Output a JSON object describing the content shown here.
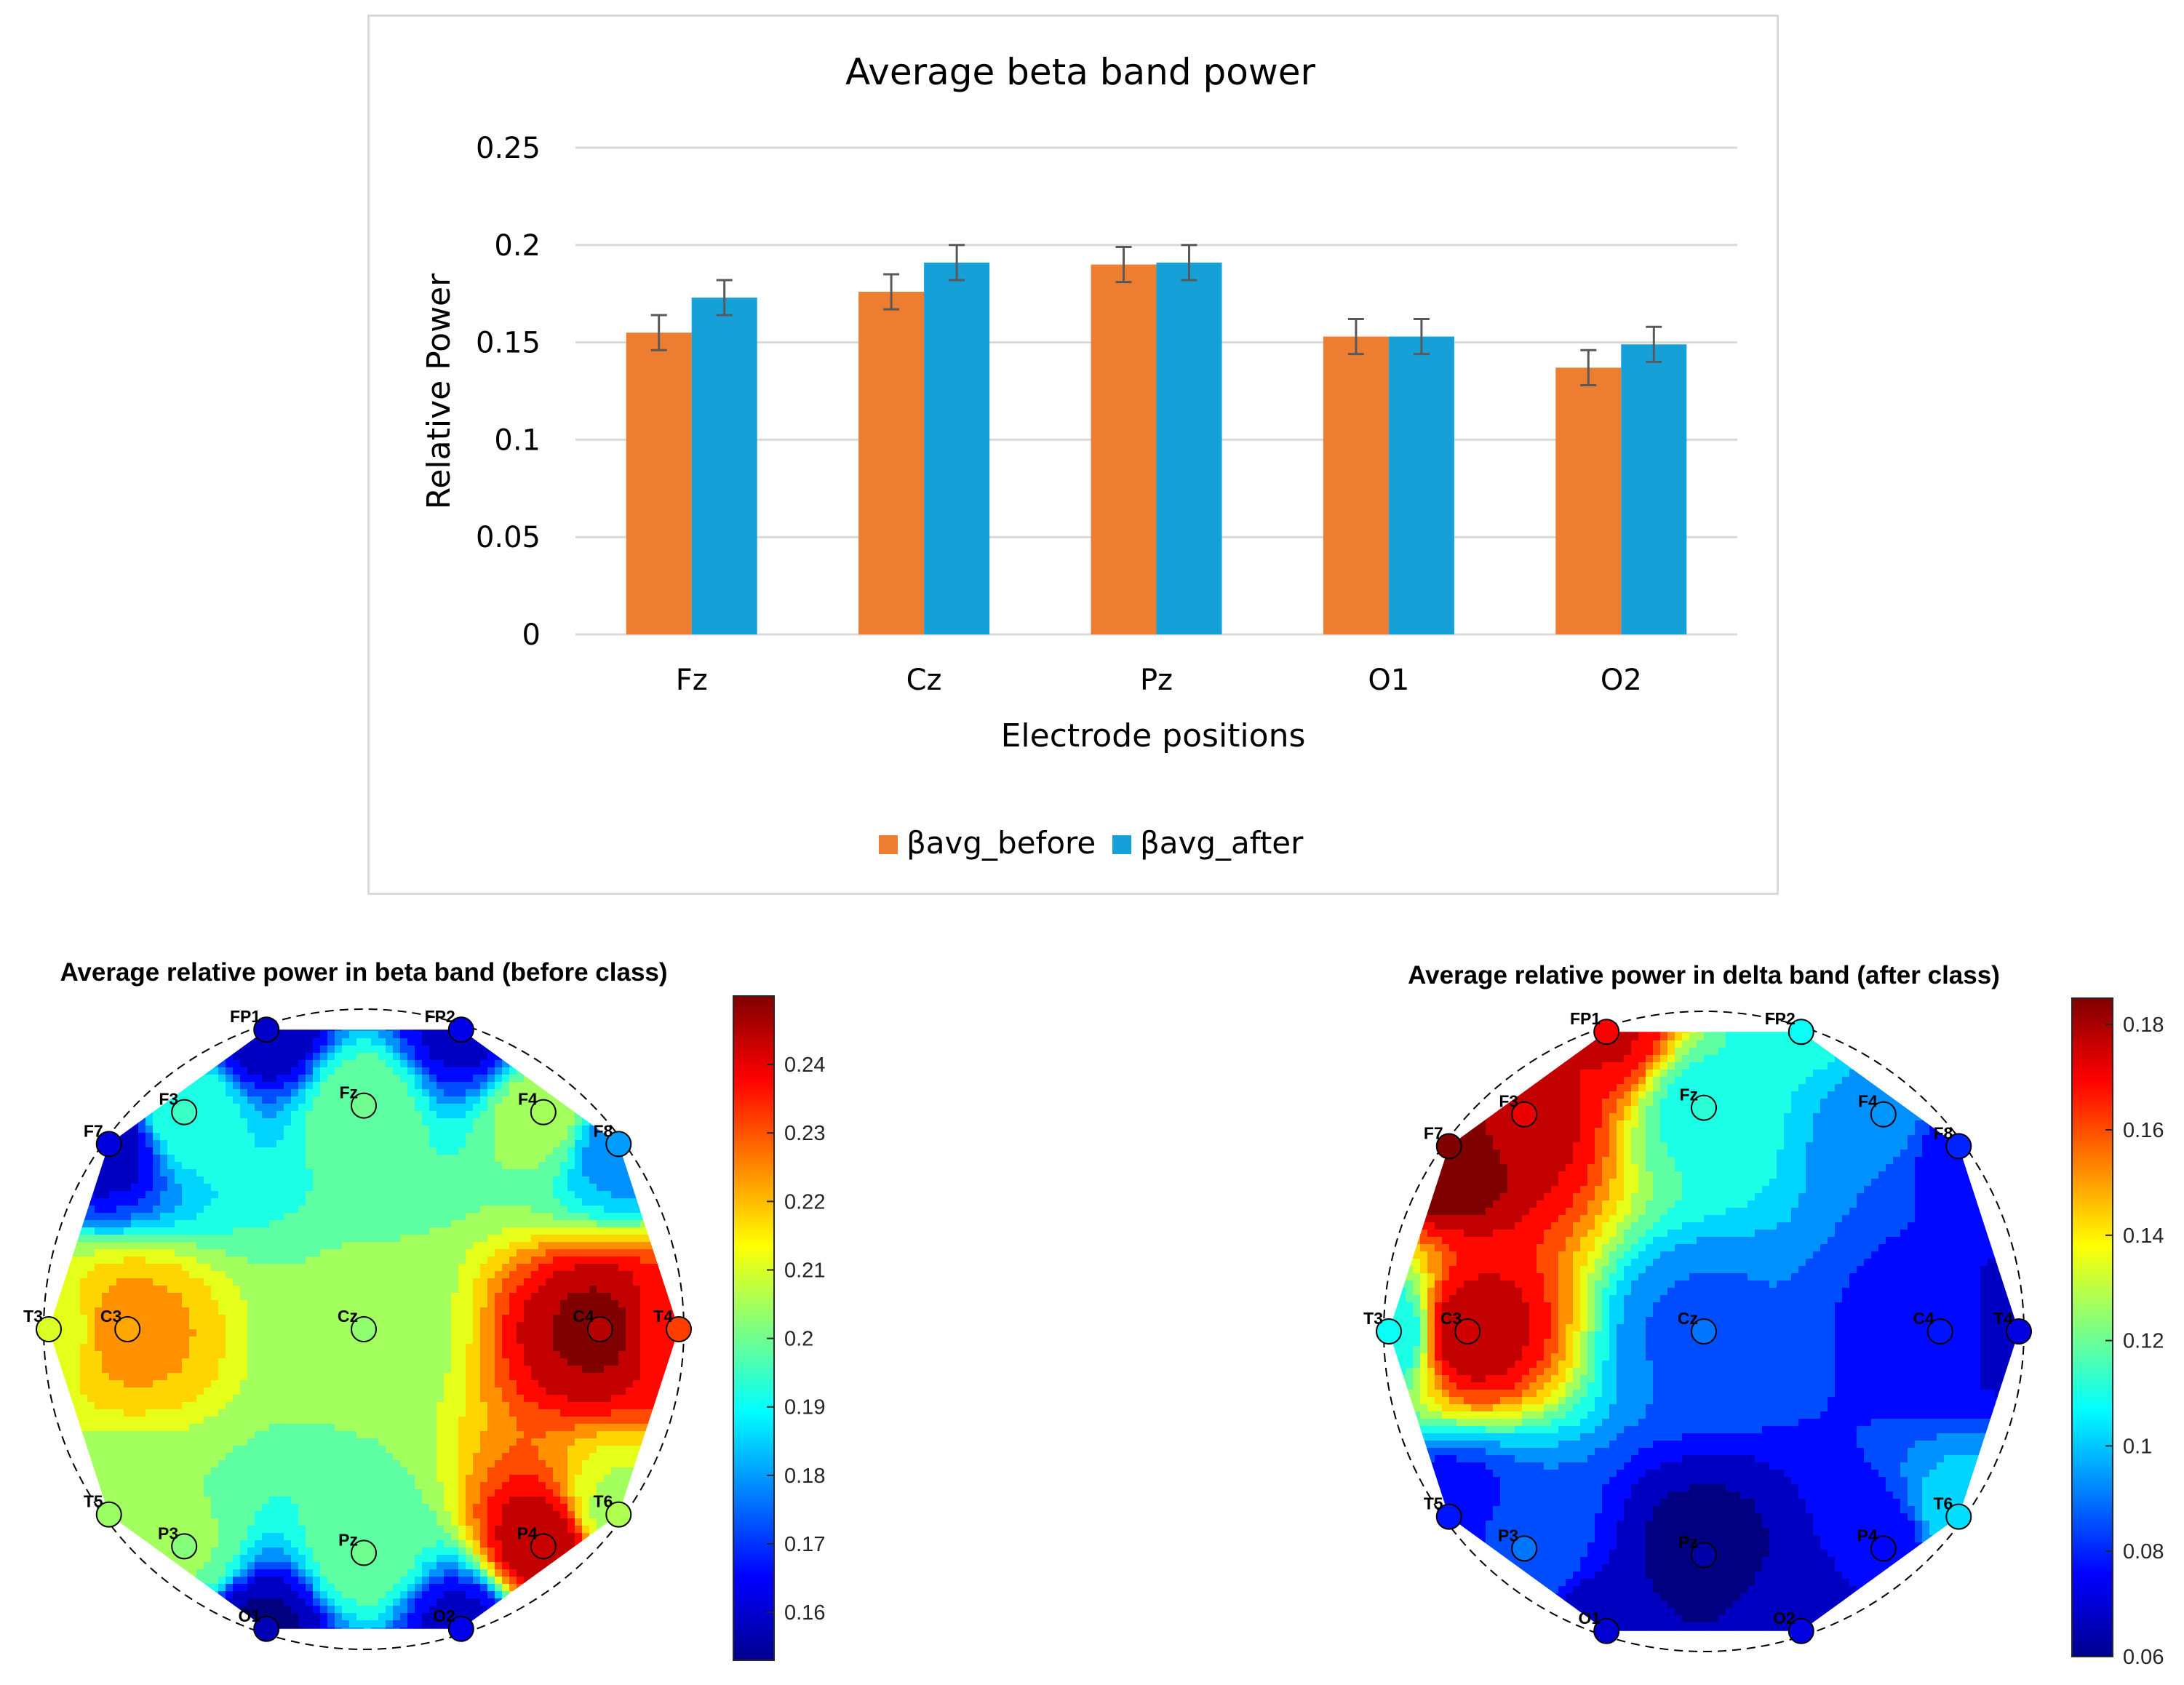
{
  "chart_data": [
    {
      "type": "bar",
      "title": "Average beta band power",
      "xlabel": "Electrode positions",
      "ylabel": "Relative Power",
      "categories": [
        "Fz",
        "Cz",
        "Pz",
        "O1",
        "O2"
      ],
      "ylim": [
        0,
        0.25
      ],
      "yticks": [
        "0",
        "0.05",
        "0.1",
        "0.15",
        "0.2",
        "0.25"
      ],
      "ytick_values": [
        0,
        0.05,
        0.1,
        0.15,
        0.2,
        0.25
      ],
      "grid": true,
      "legend_position": "bottom",
      "series": [
        {
          "name": "βavg_before",
          "color": "#ed7d31",
          "values": [
            0.155,
            0.176,
            0.19,
            0.153,
            0.137
          ],
          "error": [
            0.009,
            0.009,
            0.009,
            0.009,
            0.009
          ]
        },
        {
          "name": "βavg_after",
          "color": "#16a0d8",
          "values": [
            0.173,
            0.191,
            0.191,
            0.153,
            0.149
          ],
          "error": [
            0.009,
            0.009,
            0.009,
            0.009,
            0.009
          ]
        }
      ]
    },
    {
      "type": "heatmap",
      "title": "Average relative power in beta band (before class)",
      "colormap": "jet",
      "clim": [
        0.153,
        0.25
      ],
      "colorbar_ticks": [
        "0.16",
        "0.17",
        "0.18",
        "0.19",
        "0.2",
        "0.21",
        "0.22",
        "0.23",
        "0.24"
      ],
      "colorbar_tick_values": [
        0.16,
        0.17,
        0.18,
        0.19,
        0.2,
        0.21,
        0.22,
        0.23,
        0.24
      ],
      "electrodes": [
        {
          "label": "FP1",
          "value": 0.16
        },
        {
          "label": "FP2",
          "value": 0.163
        },
        {
          "label": "F7",
          "value": 0.162
        },
        {
          "label": "F3",
          "value": 0.195
        },
        {
          "label": "Fz",
          "value": 0.2
        },
        {
          "label": "F4",
          "value": 0.205
        },
        {
          "label": "F8",
          "value": 0.18
        },
        {
          "label": "T3",
          "value": 0.21
        },
        {
          "label": "C3",
          "value": 0.222
        },
        {
          "label": "Cz",
          "value": 0.203
        },
        {
          "label": "C4",
          "value": 0.245
        },
        {
          "label": "T4",
          "value": 0.232
        },
        {
          "label": "T5",
          "value": 0.204
        },
        {
          "label": "P3",
          "value": 0.202
        },
        {
          "label": "Pz",
          "value": 0.2
        },
        {
          "label": "P4",
          "value": 0.243
        },
        {
          "label": "T6",
          "value": 0.206
        },
        {
          "label": "O1",
          "value": 0.158
        },
        {
          "label": "O2",
          "value": 0.163
        }
      ]
    },
    {
      "type": "heatmap",
      "title": "Average relative power in delta band (after class)",
      "colormap": "jet",
      "clim": [
        0.06,
        0.185
      ],
      "colorbar_ticks": [
        "0.06",
        "0.08",
        "0.1",
        "0.12",
        "0.14",
        "0.16",
        "0.18"
      ],
      "colorbar_tick_values": [
        0.06,
        0.08,
        0.1,
        0.12,
        0.14,
        0.16,
        0.18
      ],
      "electrodes": [
        {
          "label": "FP1",
          "value": 0.17
        },
        {
          "label": "FP2",
          "value": 0.108
        },
        {
          "label": "F7",
          "value": 0.185
        },
        {
          "label": "F3",
          "value": 0.172
        },
        {
          "label": "Fz",
          "value": 0.112
        },
        {
          "label": "F4",
          "value": 0.094
        },
        {
          "label": "F8",
          "value": 0.08
        },
        {
          "label": "T3",
          "value": 0.108
        },
        {
          "label": "C3",
          "value": 0.175
        },
        {
          "label": "Cz",
          "value": 0.09
        },
        {
          "label": "C4",
          "value": 0.078
        },
        {
          "label": "T4",
          "value": 0.072
        },
        {
          "label": "T5",
          "value": 0.078
        },
        {
          "label": "P3",
          "value": 0.09
        },
        {
          "label": "Pz",
          "value": 0.065
        },
        {
          "label": "P4",
          "value": 0.076
        },
        {
          "label": "T6",
          "value": 0.103
        },
        {
          "label": "O1",
          "value": 0.07
        },
        {
          "label": "O2",
          "value": 0.072
        }
      ]
    }
  ]
}
